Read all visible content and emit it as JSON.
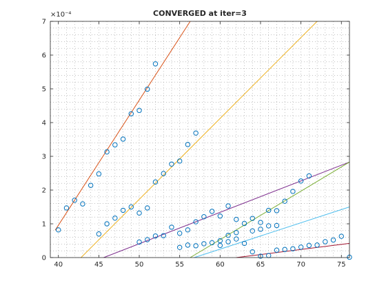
{
  "chart_data": {
    "type": "scatter",
    "title": "CONVERGED at iter=3",
    "xlabel": "",
    "ylabel": "",
    "xlim": [
      39,
      76
    ],
    "ylim": [
      0,
      7
    ],
    "y_exponent_label": "×10⁻⁴",
    "grid": "dotted",
    "xticks": [
      40,
      45,
      50,
      55,
      60,
      65,
      70,
      75
    ],
    "yticks": [
      0,
      1,
      2,
      3,
      4,
      5,
      6,
      7
    ],
    "marker_color": "#0072BD",
    "points": [
      [
        40,
        0.82
      ],
      [
        41,
        1.47
      ],
      [
        42,
        1.7
      ],
      [
        43,
        1.59
      ],
      [
        44,
        2.14
      ],
      [
        45,
        2.48
      ],
      [
        46,
        3.13
      ],
      [
        47,
        3.34
      ],
      [
        48,
        3.51
      ],
      [
        49,
        4.26
      ],
      [
        50,
        4.36
      ],
      [
        51,
        4.99
      ],
      [
        52,
        5.74
      ],
      [
        45,
        0.7
      ],
      [
        46,
        1.0
      ],
      [
        47,
        1.17
      ],
      [
        48,
        1.4
      ],
      [
        49,
        1.5
      ],
      [
        50,
        1.32
      ],
      [
        51,
        1.47
      ],
      [
        52,
        2.24
      ],
      [
        53,
        2.49
      ],
      [
        54,
        2.77
      ],
      [
        55,
        2.86
      ],
      [
        56,
        3.35
      ],
      [
        57,
        3.69
      ],
      [
        50,
        0.46
      ],
      [
        51,
        0.53
      ],
      [
        52,
        0.64
      ],
      [
        53,
        0.65
      ],
      [
        54,
        0.9
      ],
      [
        55,
        0.72
      ],
      [
        56,
        0.82
      ],
      [
        57,
        1.06
      ],
      [
        58,
        1.21
      ],
      [
        59,
        1.37
      ],
      [
        60,
        1.23
      ],
      [
        61,
        1.53
      ],
      [
        55,
        0.3
      ],
      [
        56,
        0.37
      ],
      [
        57,
        0.35
      ],
      [
        58,
        0.41
      ],
      [
        59,
        0.44
      ],
      [
        60,
        0.36
      ],
      [
        60,
        0.5
      ],
      [
        61,
        0.47
      ],
      [
        61,
        0.66
      ],
      [
        62,
        0.74
      ],
      [
        62,
        0.55
      ],
      [
        63,
        0.42
      ],
      [
        62,
        1.13
      ],
      [
        63,
        1.01
      ],
      [
        64,
        1.16
      ],
      [
        64,
        0.79
      ],
      [
        65,
        0.84
      ],
      [
        65,
        1.04
      ],
      [
        66,
        1.4
      ],
      [
        66,
        0.94
      ],
      [
        67,
        0.95
      ],
      [
        67,
        1.39
      ],
      [
        68,
        1.67
      ],
      [
        69,
        1.96
      ],
      [
        70,
        2.27
      ],
      [
        71,
        2.42
      ],
      [
        64,
        0.17
      ],
      [
        65,
        0.04
      ],
      [
        66,
        0.06
      ],
      [
        67,
        0.22
      ],
      [
        68,
        0.24
      ],
      [
        69,
        0.26
      ],
      [
        70,
        0.31
      ],
      [
        71,
        0.36
      ],
      [
        72,
        0.37
      ],
      [
        73,
        0.47
      ],
      [
        74,
        0.52
      ],
      [
        75,
        0.63
      ],
      [
        76,
        0.01
      ]
    ],
    "lines": [
      {
        "color": "#D95319",
        "x": [
          39.6,
          56.3
        ],
        "y": [
          0.81,
          7.0
        ]
      },
      {
        "color": "#EDB120",
        "x": [
          42.8,
          72.0
        ],
        "y": [
          0.0,
          7.0
        ]
      },
      {
        "color": "#7E2F8E",
        "x": [
          45.6,
          76.0
        ],
        "y": [
          0.0,
          2.83
        ]
      },
      {
        "color": "#77AC30",
        "x": [
          56.3,
          76.0
        ],
        "y": [
          0.0,
          2.83
        ]
      },
      {
        "color": "#4DBEEE",
        "x": [
          56.8,
          76.0
        ],
        "y": [
          0.0,
          1.5
        ]
      },
      {
        "color": "#A2142F",
        "x": [
          62.0,
          76.0
        ],
        "y": [
          0.0,
          0.42
        ]
      }
    ]
  }
}
